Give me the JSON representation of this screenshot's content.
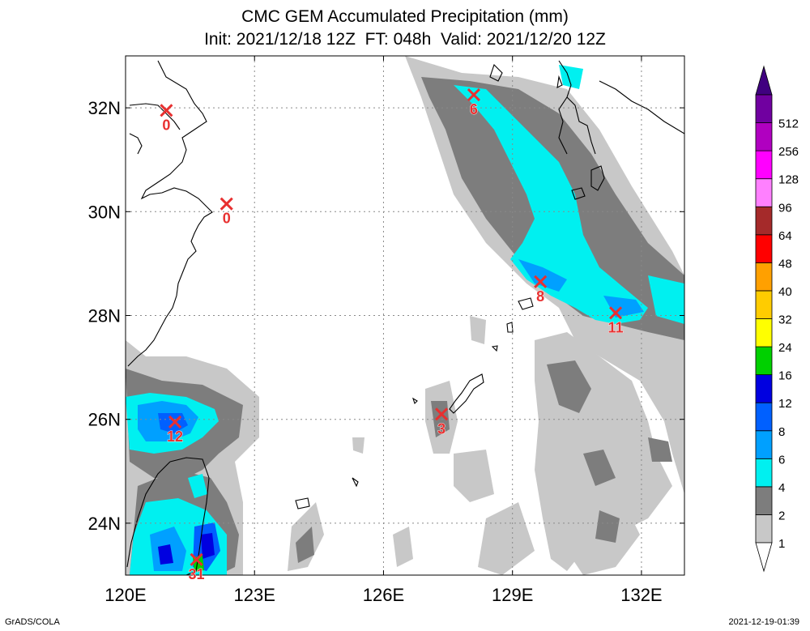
{
  "title": {
    "line1": "CMC GEM Accumulated Precipitation (mm)",
    "line2": "Init: 2021/12/18 12Z  FT: 048h  Valid: 2021/12/20 12Z"
  },
  "map": {
    "lon_range": [
      120,
      133
    ],
    "lat_range": [
      23,
      33
    ],
    "lon_ticks": [
      {
        "value": 120,
        "label": "120E"
      },
      {
        "value": 123,
        "label": "123E"
      },
      {
        "value": 126,
        "label": "126E"
      },
      {
        "value": 129,
        "label": "129E"
      },
      {
        "value": 132,
        "label": "132E"
      }
    ],
    "lat_ticks": [
      {
        "value": 24,
        "label": "24N"
      },
      {
        "value": 26,
        "label": "26N"
      },
      {
        "value": 28,
        "label": "28N"
      },
      {
        "value": 30,
        "label": "30N"
      },
      {
        "value": 32,
        "label": "32N"
      }
    ],
    "grid": true
  },
  "colorbar": {
    "levels": [
      {
        "label": "1",
        "color": "#c8c8c8"
      },
      {
        "label": "2",
        "color": "#7d7d7d"
      },
      {
        "label": "4",
        "color": "#00f0f0"
      },
      {
        "label": "6",
        "color": "#00a0ff"
      },
      {
        "label": "8",
        "color": "#0060ff"
      },
      {
        "label": "12",
        "color": "#0000e0"
      },
      {
        "label": "16",
        "color": "#00d000"
      },
      {
        "label": "24",
        "color": "#ffff00"
      },
      {
        "label": "32",
        "color": "#ffcc00"
      },
      {
        "label": "40",
        "color": "#ffa000"
      },
      {
        "label": "48",
        "color": "#ff0000"
      },
      {
        "label": "64",
        "color": "#a52a2a"
      },
      {
        "label": "96",
        "color": "#ff80ff"
      },
      {
        "label": "128",
        "color": "#ff00ff"
      },
      {
        "label": "256",
        "color": "#b000c0"
      },
      {
        "label": "512",
        "color": "#7000a0"
      }
    ],
    "top_arrow_color": "#400080",
    "bottom_arrow_color": "#ffffff"
  },
  "markers": [
    {
      "lon": 120.95,
      "lat": 31.95,
      "label": "0"
    },
    {
      "lon": 122.35,
      "lat": 30.15,
      "label": "0"
    },
    {
      "lon": 128.1,
      "lat": 32.25,
      "label": "6"
    },
    {
      "lon": 129.65,
      "lat": 28.65,
      "label": "8"
    },
    {
      "lon": 131.4,
      "lat": 28.05,
      "label": "11"
    },
    {
      "lon": 121.15,
      "lat": 25.95,
      "label": "12"
    },
    {
      "lon": 127.35,
      "lat": 26.1,
      "label": "3"
    },
    {
      "lon": 121.65,
      "lat": 23.3,
      "label": "31"
    }
  ],
  "marker_color": "#e83030",
  "footer": {
    "left": "GrADS/COLA",
    "right": "2021-12-19-01:39"
  }
}
